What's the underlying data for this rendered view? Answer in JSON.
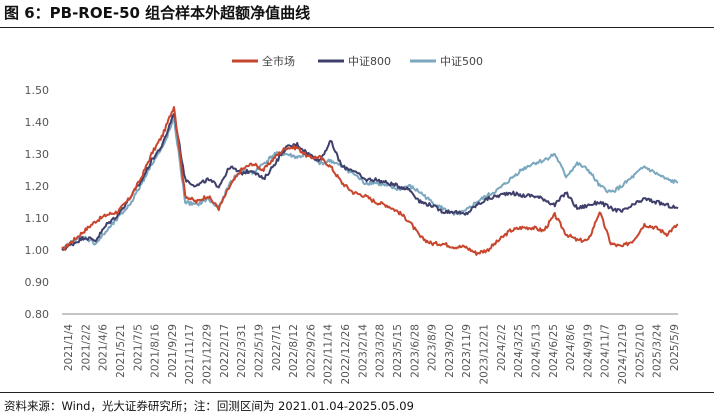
{
  "title": "图 6：PB-ROE-50 组合样本外超额净值曲线",
  "source": "资料来源：Wind，光大证券研究所；注：回测区间为 2021.01.04-2025.05.09",
  "chart_data": {
    "type": "line",
    "ylim": [
      0.8,
      1.5
    ],
    "yticks": [
      "0.80",
      "0.90",
      "1.00",
      "1.10",
      "1.20",
      "1.30",
      "1.40",
      "1.50"
    ],
    "x_tick_labels": [
      "2021/1/4",
      "2021/2/2",
      "2021/4/6",
      "2021/5/21",
      "2021/7/5",
      "2021/8/16",
      "2021/9/29",
      "2021/11/17",
      "2021/12/29",
      "2022/2/17",
      "2022/3/31",
      "2022/5/19",
      "2022/7/1",
      "2022/8/12",
      "2022/9/26",
      "2022/11/14",
      "2022/12/26",
      "2023/2/14",
      "2023/3/28",
      "2023/5/15",
      "2023/6/28",
      "2023/8/9",
      "2023/9/20",
      "2023/11/9",
      "2023/12/21",
      "2024/2/2",
      "2024/3/25",
      "2024/5/13",
      "2024/6/25",
      "2024/8/6",
      "2024/9/19",
      "2024/11/7",
      "2024/12/19",
      "2025/2/10",
      "2025/3/24",
      "2025/5/9"
    ],
    "legend_position": "top-center",
    "series": [
      {
        "name": "全市场",
        "color": "#C8462D",
        "values": [
          1.0,
          1.03,
          1.06,
          1.09,
          1.11,
          1.12,
          1.16,
          1.22,
          1.3,
          1.36,
          1.45,
          1.17,
          1.15,
          1.17,
          1.13,
          1.2,
          1.25,
          1.27,
          1.25,
          1.29,
          1.32,
          1.32,
          1.29,
          1.29,
          1.26,
          1.21,
          1.18,
          1.17,
          1.15,
          1.14,
          1.12,
          1.09,
          1.04,
          1.02,
          1.02,
          1.01,
          1.01,
          0.99,
          1.0,
          1.03,
          1.06,
          1.07,
          1.07,
          1.06,
          1.11,
          1.05,
          1.03,
          1.03,
          1.12,
          1.02,
          1.01,
          1.03,
          1.08,
          1.07,
          1.05,
          1.08
        ]
      },
      {
        "name": "中证800",
        "color": "#3F3F6B",
        "values": [
          1.0,
          1.02,
          1.04,
          1.03,
          1.08,
          1.11,
          1.16,
          1.21,
          1.28,
          1.33,
          1.43,
          1.22,
          1.2,
          1.22,
          1.2,
          1.26,
          1.24,
          1.25,
          1.22,
          1.27,
          1.32,
          1.33,
          1.3,
          1.28,
          1.34,
          1.26,
          1.25,
          1.22,
          1.22,
          1.21,
          1.2,
          1.19,
          1.15,
          1.14,
          1.12,
          1.12,
          1.11,
          1.14,
          1.16,
          1.17,
          1.18,
          1.17,
          1.17,
          1.16,
          1.14,
          1.18,
          1.13,
          1.14,
          1.15,
          1.13,
          1.12,
          1.14,
          1.16,
          1.15,
          1.14,
          1.13
        ]
      },
      {
        "name": "中证500",
        "color": "#7BA7BF",
        "values": [
          1.0,
          1.03,
          1.04,
          1.02,
          1.06,
          1.1,
          1.14,
          1.2,
          1.27,
          1.32,
          1.41,
          1.15,
          1.14,
          1.16,
          1.13,
          1.21,
          1.25,
          1.24,
          1.27,
          1.3,
          1.3,
          1.29,
          1.3,
          1.27,
          1.28,
          1.26,
          1.24,
          1.21,
          1.21,
          1.2,
          1.19,
          1.2,
          1.18,
          1.15,
          1.13,
          1.11,
          1.12,
          1.15,
          1.17,
          1.19,
          1.22,
          1.25,
          1.27,
          1.28,
          1.3,
          1.23,
          1.27,
          1.25,
          1.2,
          1.18,
          1.2,
          1.23,
          1.26,
          1.24,
          1.22,
          1.21
        ]
      }
    ]
  }
}
